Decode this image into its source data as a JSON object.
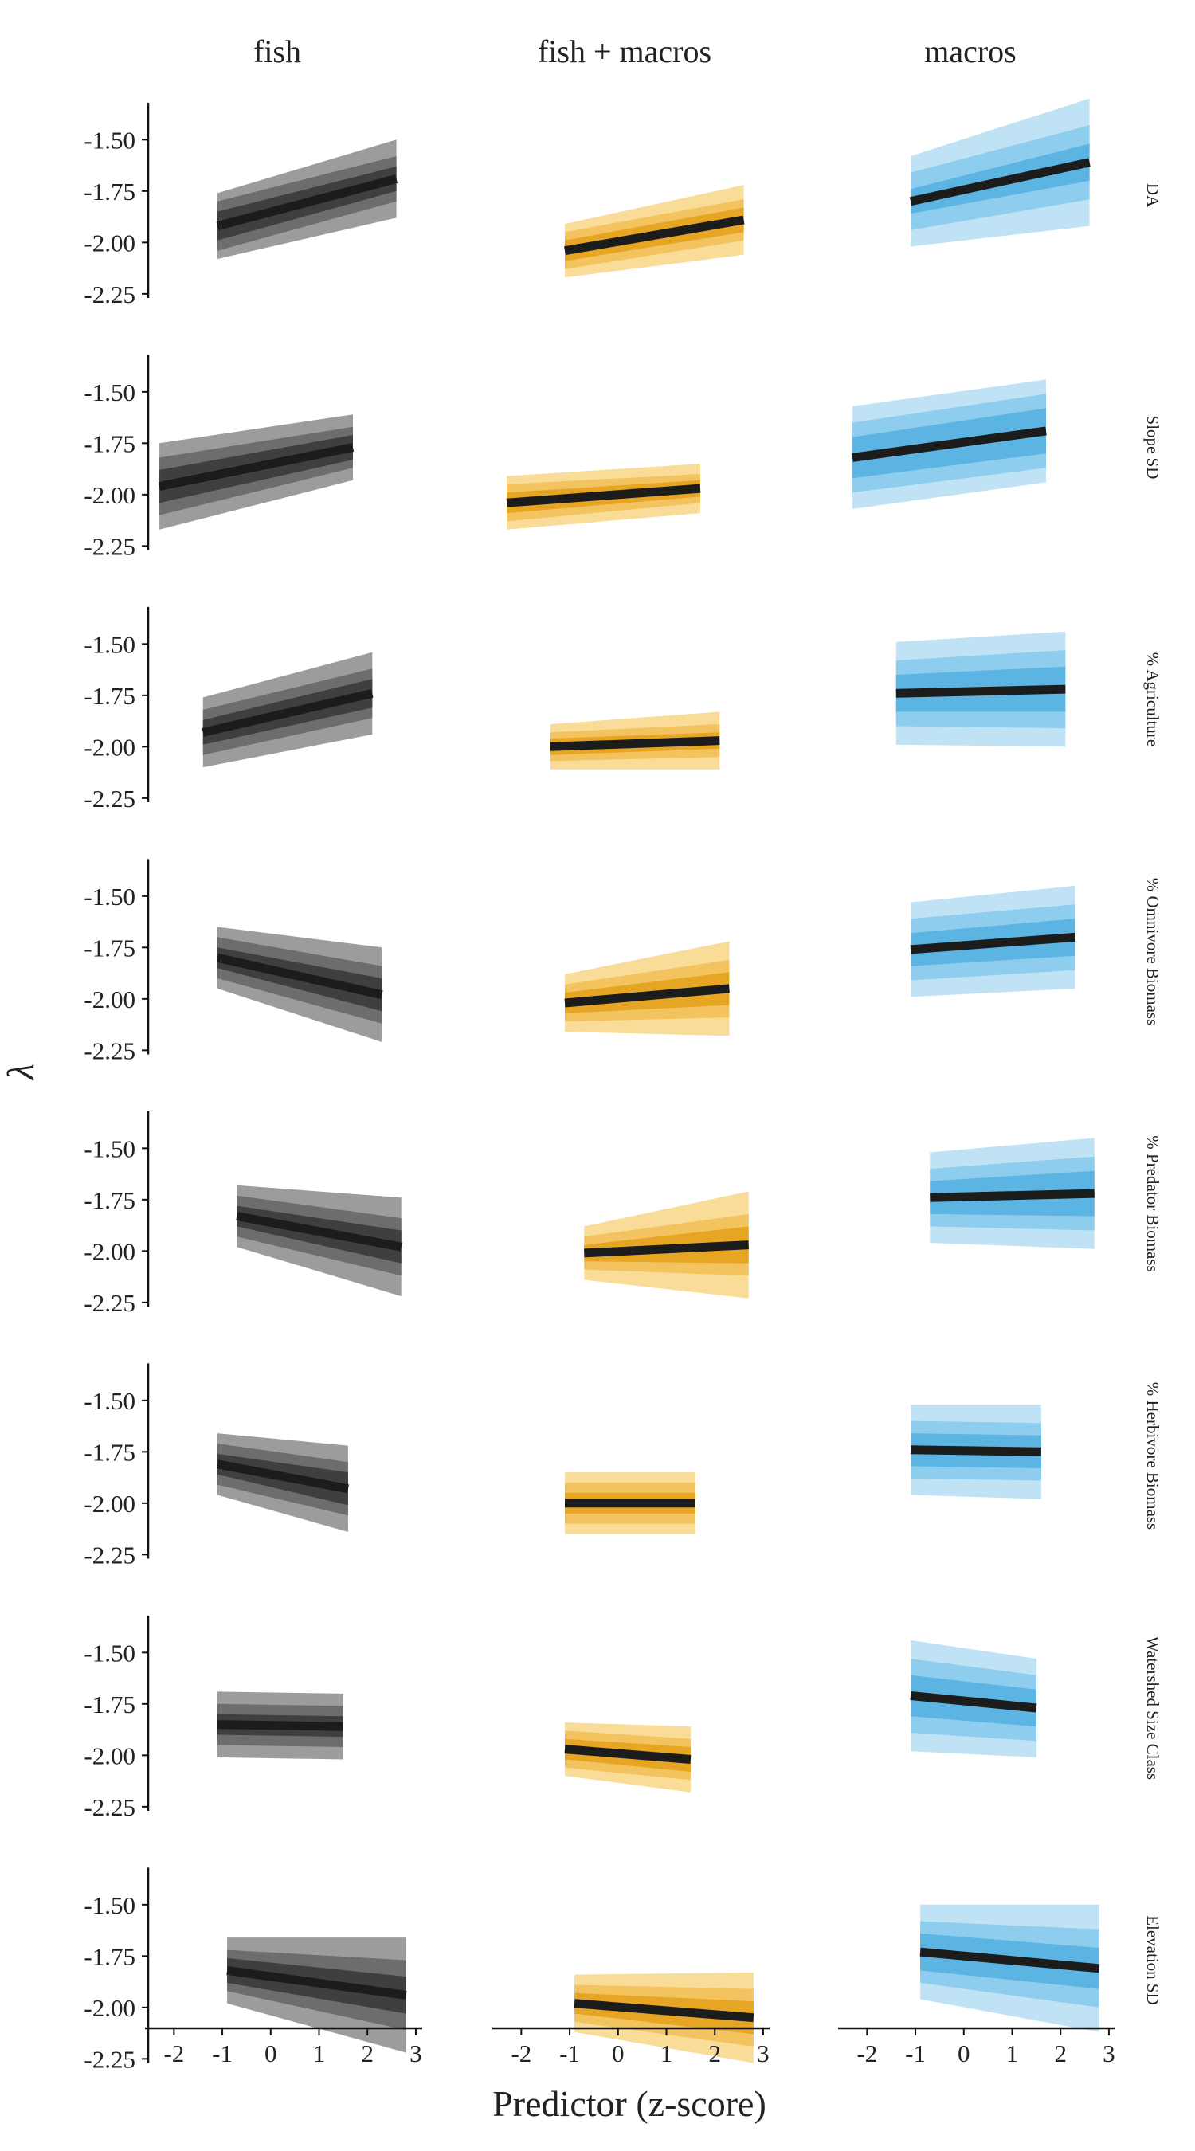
{
  "chart_data": {
    "type": "line",
    "title": "",
    "xlabel": "Predictor (z-score)",
    "ylabel": "λ",
    "xlim": [
      -2.5,
      3.1
    ],
    "ylim": [
      -2.27,
      -1.27
    ],
    "xticks": [
      -2,
      -1,
      0,
      1,
      2,
      3
    ],
    "xtick_labels": [
      "-2",
      "-1",
      "0",
      "1",
      "2",
      "3"
    ],
    "yticks": [
      -1.5,
      -1.75,
      -2.0,
      -2.25
    ],
    "ytick_labels": [
      "-1.50",
      "-1.75",
      "-2.00",
      "-2.25"
    ],
    "grid": false,
    "columns": [
      {
        "label": "fish",
        "color": "#1c1c1c",
        "band_colors": [
          "#9c9c9c",
          "#6d6d6d",
          "#3f3f3f"
        ]
      },
      {
        "label": "fish + macros",
        "color": "#1c1c1c",
        "band_colors": [
          "#f8dc97",
          "#f3c35f",
          "#e6a624"
        ]
      },
      {
        "label": "macros",
        "color": "#1c1c1c",
        "band_colors": [
          "#bfe2f5",
          "#8fcdee",
          "#5cb4e3"
        ]
      }
    ],
    "rows": [
      {
        "label": "DA",
        "panels": [
          {
            "x": [
              -1.1,
              2.6
            ],
            "y": [
              -1.92,
              -1.69
            ],
            "hw": [
              [
                0.07,
                0.12,
                0.16
              ],
              [
                0.06,
                0.11,
                0.19
              ]
            ]
          },
          {
            "x": [
              -1.1,
              2.6
            ],
            "y": [
              -2.04,
              -1.89
            ],
            "hw": [
              [
                0.05,
                0.09,
                0.13
              ],
              [
                0.06,
                0.1,
                0.17
              ]
            ]
          },
          {
            "x": [
              -1.1,
              2.6
            ],
            "y": [
              -1.8,
              -1.61
            ],
            "hw": [
              [
                0.06,
                0.14,
                0.22
              ],
              [
                0.09,
                0.18,
                0.31
              ]
            ]
          }
        ]
      },
      {
        "label": "Slope SD",
        "panels": [
          {
            "x": [
              -2.3,
              1.7
            ],
            "y": [
              -1.96,
              -1.77
            ],
            "hw": [
              [
                0.08,
                0.14,
                0.21
              ],
              [
                0.06,
                0.1,
                0.16
              ]
            ]
          },
          {
            "x": [
              -2.3,
              1.7
            ],
            "y": [
              -2.04,
              -1.97
            ],
            "hw": [
              [
                0.05,
                0.09,
                0.13
              ],
              [
                0.04,
                0.07,
                0.12
              ]
            ]
          },
          {
            "x": [
              -2.3,
              1.7
            ],
            "y": [
              -1.82,
              -1.69
            ],
            "hw": [
              [
                0.1,
                0.17,
                0.25
              ],
              [
                0.11,
                0.18,
                0.25
              ]
            ]
          }
        ]
      },
      {
        "label": "% Agriculture",
        "panels": [
          {
            "x": [
              -1.4,
              2.1
            ],
            "y": [
              -1.93,
              -1.74
            ],
            "hw": [
              [
                0.06,
                0.11,
                0.17
              ],
              [
                0.07,
                0.12,
                0.2
              ]
            ]
          },
          {
            "x": [
              -1.4,
              2.1
            ],
            "y": [
              -2.0,
              -1.97
            ],
            "hw": [
              [
                0.04,
                0.07,
                0.11
              ],
              [
                0.04,
                0.08,
                0.14
              ]
            ]
          },
          {
            "x": [
              -1.4,
              2.1
            ],
            "y": [
              -1.74,
              -1.72
            ],
            "hw": [
              [
                0.09,
                0.16,
                0.25
              ],
              [
                0.11,
                0.19,
                0.28
              ]
            ]
          }
        ]
      },
      {
        "label": "% Omnivore Biomass",
        "panels": [
          {
            "x": [
              -1.1,
              2.3
            ],
            "y": [
              -1.8,
              -1.98
            ],
            "hw": [
              [
                0.05,
                0.1,
                0.15
              ],
              [
                0.08,
                0.14,
                0.23
              ]
            ]
          },
          {
            "x": [
              -1.1,
              2.3
            ],
            "y": [
              -2.02,
              -1.95
            ],
            "hw": [
              [
                0.05,
                0.09,
                0.14
              ],
              [
                0.08,
                0.14,
                0.23
              ]
            ]
          },
          {
            "x": [
              -1.1,
              2.3
            ],
            "y": [
              -1.76,
              -1.7
            ],
            "hw": [
              [
                0.08,
                0.15,
                0.23
              ],
              [
                0.09,
                0.16,
                0.25
              ]
            ]
          }
        ]
      },
      {
        "label": "% Predator Biomass",
        "panels": [
          {
            "x": [
              -0.7,
              2.7
            ],
            "y": [
              -1.83,
              -1.98
            ],
            "hw": [
              [
                0.05,
                0.1,
                0.15
              ],
              [
                0.08,
                0.14,
                0.24
              ]
            ]
          },
          {
            "x": [
              -0.7,
              2.7
            ],
            "y": [
              -2.01,
              -1.97
            ],
            "hw": [
              [
                0.04,
                0.08,
                0.13
              ],
              [
                0.09,
                0.15,
                0.26
              ]
            ]
          },
          {
            "x": [
              -0.7,
              2.7
            ],
            "y": [
              -1.74,
              -1.72
            ],
            "hw": [
              [
                0.08,
                0.14,
                0.22
              ],
              [
                0.11,
                0.18,
                0.27
              ]
            ]
          }
        ]
      },
      {
        "label": "% Herbivore Biomass",
        "panels": [
          {
            "x": [
              -1.1,
              1.6
            ],
            "y": [
              -1.81,
              -1.93
            ],
            "hw": [
              [
                0.05,
                0.1,
                0.15
              ],
              [
                0.08,
                0.13,
                0.21
              ]
            ]
          },
          {
            "x": [
              -1.1,
              1.6
            ],
            "y": [
              -2.0,
              -2.0
            ],
            "hw": [
              [
                0.05,
                0.1,
                0.15
              ],
              [
                0.05,
                0.1,
                0.15
              ]
            ]
          },
          {
            "x": [
              -1.1,
              1.6
            ],
            "y": [
              -1.74,
              -1.75
            ],
            "hw": [
              [
                0.08,
                0.14,
                0.22
              ],
              [
                0.08,
                0.14,
                0.23
              ]
            ]
          }
        ]
      },
      {
        "label": "Watershed Size Class",
        "panels": [
          {
            "x": [
              -1.1,
              1.5
            ],
            "y": [
              -1.85,
              -1.86
            ],
            "hw": [
              [
                0.05,
                0.1,
                0.16
              ],
              [
                0.05,
                0.1,
                0.16
              ]
            ]
          },
          {
            "x": [
              -1.1,
              1.5
            ],
            "y": [
              -1.97,
              -2.02
            ],
            "hw": [
              [
                0.05,
                0.09,
                0.13
              ],
              [
                0.06,
                0.1,
                0.16
              ]
            ]
          },
          {
            "x": [
              -1.1,
              1.5
            ],
            "y": [
              -1.71,
              -1.77
            ],
            "hw": [
              [
                0.1,
                0.18,
                0.27
              ],
              [
                0.09,
                0.16,
                0.24
              ]
            ]
          }
        ]
      },
      {
        "label": "Elevation SD",
        "panels": [
          {
            "x": [
              -0.9,
              2.8
            ],
            "y": [
              -1.82,
              -1.94
            ],
            "hw": [
              [
                0.06,
                0.1,
                0.16
              ],
              [
                0.09,
                0.17,
                0.28
              ]
            ]
          },
          {
            "x": [
              -0.9,
              2.8
            ],
            "y": [
              -1.98,
              -2.05
            ],
            "hw": [
              [
                0.05,
                0.09,
                0.14
              ],
              [
                0.08,
                0.14,
                0.22
              ]
            ]
          },
          {
            "x": [
              -0.9,
              2.8
            ],
            "y": [
              -1.73,
              -1.81
            ],
            "hw": [
              [
                0.09,
                0.15,
                0.23
              ],
              [
                0.1,
                0.19,
                0.31
              ]
            ]
          }
        ]
      }
    ]
  }
}
